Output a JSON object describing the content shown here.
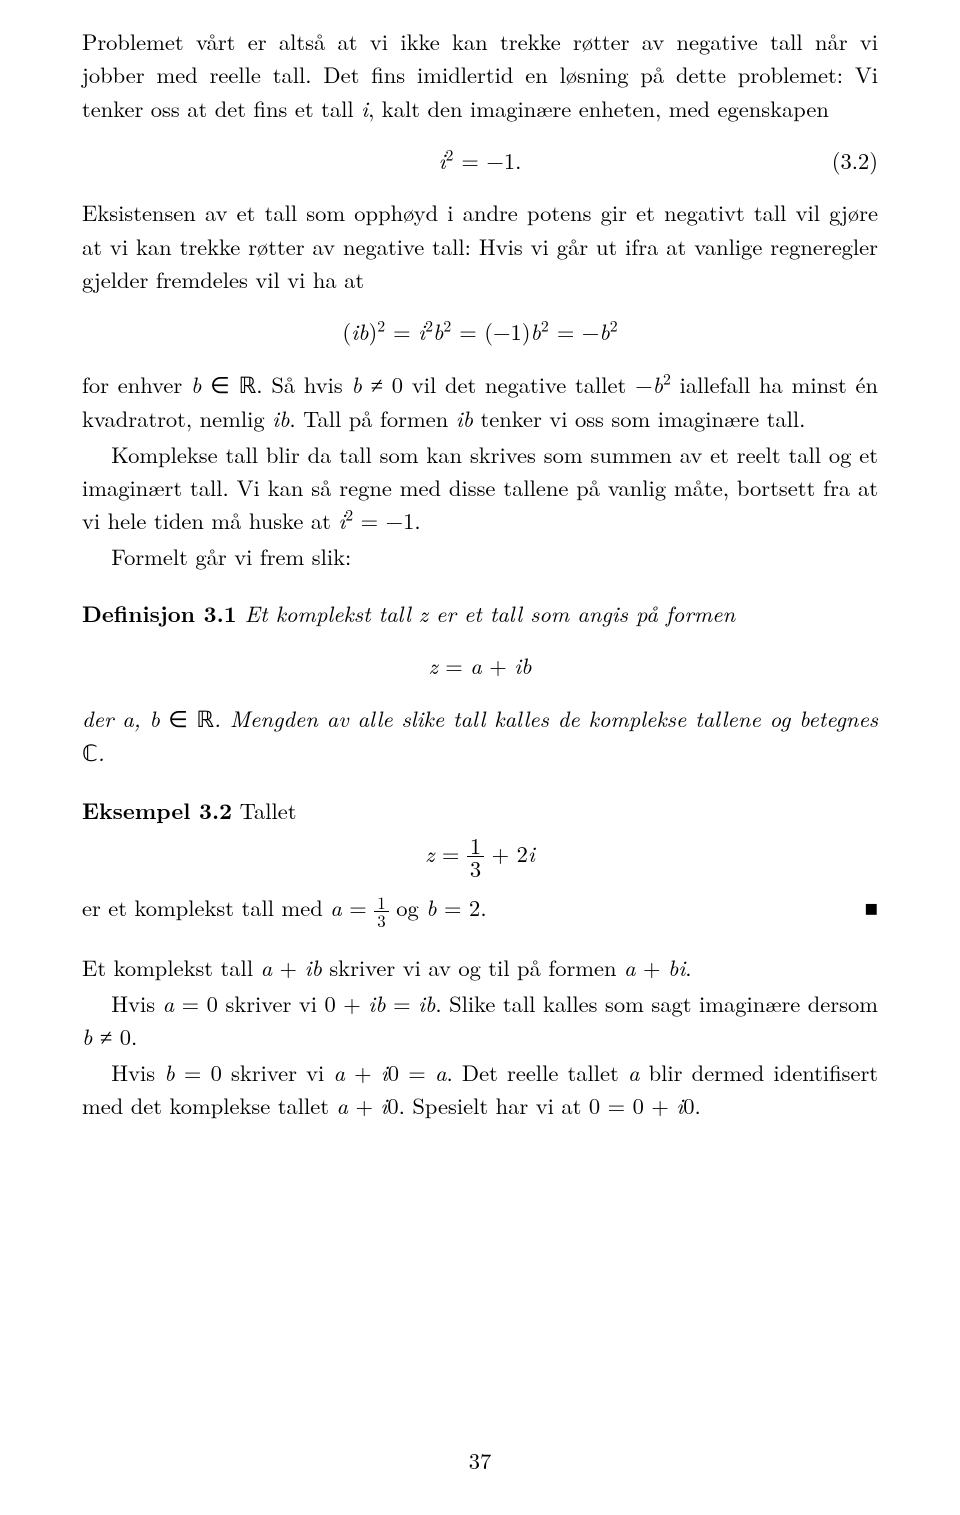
{
  "fontsize_body_pt": 12,
  "fontsize_sup_rel": 0.7,
  "text_color": "#000000",
  "background_color": "#ffffff",
  "font_family": "Latin Modern Roman / Computer Modern (serif)",
  "page_number": "37",
  "paragraphs": {
    "p1a": "Problemet vårt er altså at vi ikke kan trekke røtter av negative tall når vi jobber med reelle tall. Det fins imidlertid en løsning på dette problemet: Vi tenker oss at det fins et tall ",
    "p1_i": "i",
    "p1b": ", kalt den imaginære enheten, med egenskapen",
    "p2": "Eksistensen av et tall som opphøyd i andre potens gir et negativt tall vil gjøre at vi kan trekke røtter av negative tall: Hvis vi går ut ifra at vanlige regneregler gjelder fremdeles vil vi ha at",
    "p3a": "for enhver ",
    "p3_bR": "b ∈ ℝ",
    "p3b": ". Så hvis ",
    "p3_bneq": "b ≠ 0",
    "p3c": " vil det negative tallet ",
    "p3_mb2": "−b",
    "p3d": " iallefall ha minst én kvadratrot, nemlig ",
    "p3_ib": "ib",
    "p3e": ". Tall på formen ",
    "p3_ib2": "ib",
    "p3f": " tenker vi oss som imaginære tall.",
    "p4a": "Komplekse tall blir da tall som kan skrives som summen av et reelt tall og et imaginært tall. Vi kan så regne med disse tallene på vanlig måte, bortsett fra at vi hele tiden må huske at ",
    "p4_i2": "i",
    "p4_eq": " = −1",
    "p4b": ".",
    "p5": "Formelt går vi frem slik:",
    "p6a": "der ",
    "p6_abR": "a, b ∈ ℝ",
    "p6b": ". Mengden av alle slike tall kalles de komplekse tallene og betegnes ",
    "p6_C": "ℂ",
    "p6c": ".",
    "p7a": "er et komplekst tall med ",
    "p7_a": "a = ",
    "p7_third_num": "1",
    "p7_third_den": "3",
    "p7b": " og ",
    "p7_b": "b = 2",
    "p7c": ".",
    "p8a": "Et komplekst tall ",
    "p8_aib": "a + ib",
    "p8b": " skriver vi av og til på formen ",
    "p8_abi": "a + bi",
    "p8c": ".",
    "p9a": "Hvis ",
    "p9_a0": "a = 0",
    "p9b": " skriver vi ",
    "p9_0ib": "0 + ib = ib",
    "p9c": ". Slike tall kalles som sagt imaginære dersom ",
    "p9_bneq": "b ≠ 0",
    "p9d": ".",
    "p10a": "Hvis ",
    "p10_b0": "b = 0",
    "p10b": " skriver vi ",
    "p10_ai0": "a + i0 = a",
    "p10c": ". Det reelle tallet ",
    "p10_a": "a",
    "p10d": " blir dermed identifisert med det komplekse tallet ",
    "p10_ai02": "a + i0",
    "p10e": ". Spesielt har vi at ",
    "p10_00": "0 = 0 + i0",
    "p10f": "."
  },
  "equations": {
    "eq_3_2": {
      "body": "i² = −1.",
      "number": "(3.2)"
    },
    "eq_ib": {
      "body": "(ib)² = i²b² = (−1)b² = −b²"
    },
    "eq_zaib": {
      "body": "z = a + ib"
    },
    "eq_z_third": {
      "prefix": "z = ",
      "num": "1",
      "den": "3",
      "suffix": " + 2i"
    }
  },
  "definition": {
    "label": "Definisjon 3.1",
    "text_a": " Et komplekst tall ",
    "z": "z",
    "text_b": " er et tall som angis på formen"
  },
  "example": {
    "label": "Eksempel 3.2",
    "t": " Tallet",
    "qed": "■"
  }
}
